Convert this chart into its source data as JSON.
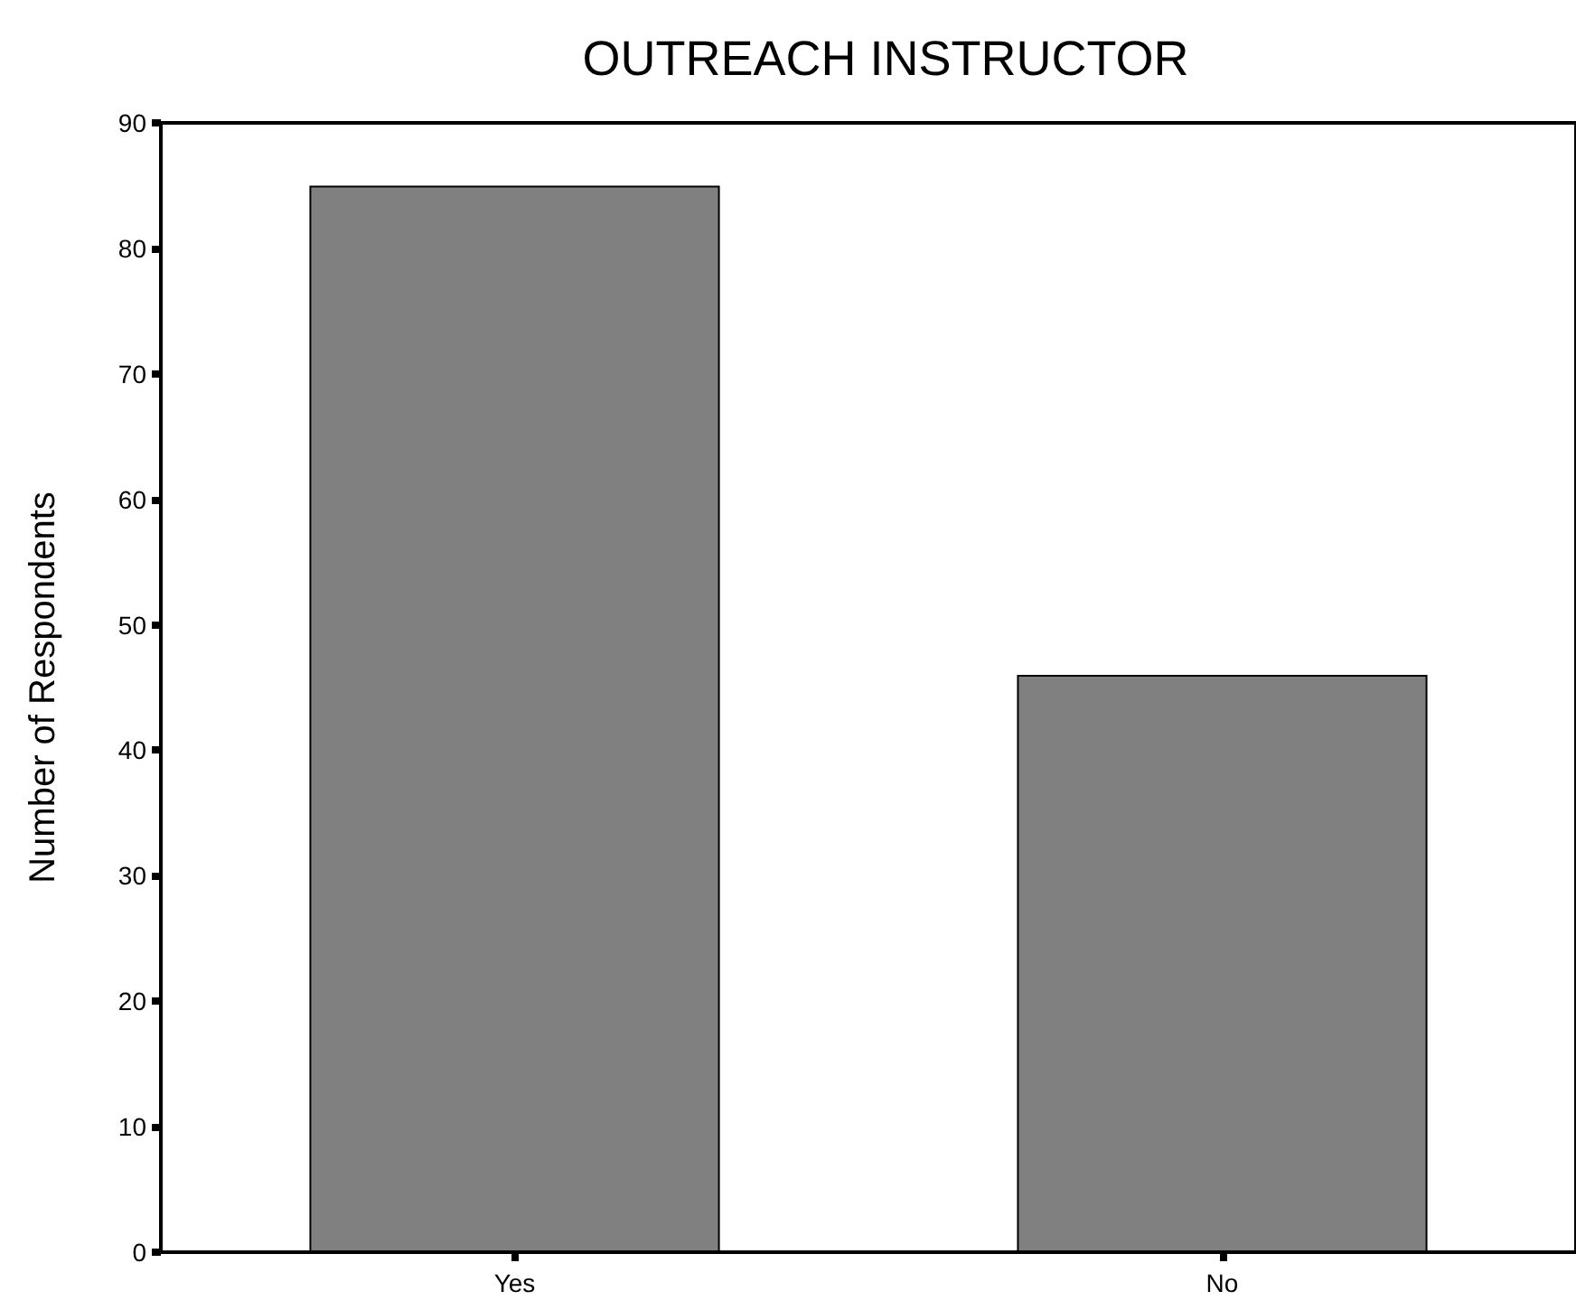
{
  "chart_data": {
    "type": "bar",
    "title": "OUTREACH INSTRUCTOR",
    "ylabel": "Number of Respondents",
    "categories": [
      "Yes",
      "No"
    ],
    "values": [
      85,
      46
    ],
    "color": "#808080",
    "ylim": [
      0,
      90
    ],
    "yticks": [
      0,
      10,
      20,
      30,
      40,
      50,
      60,
      70,
      80,
      90
    ],
    "grid": false
  }
}
